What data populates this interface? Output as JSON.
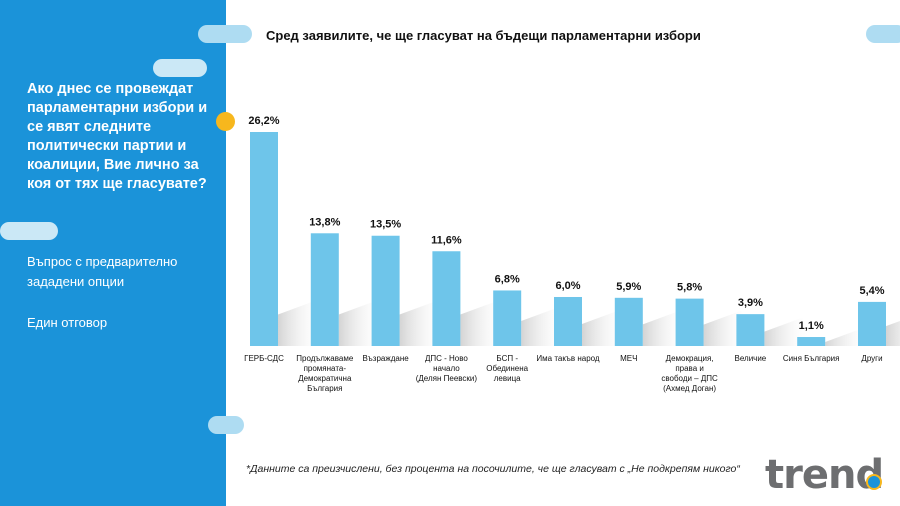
{
  "sidebar": {
    "question": "Ако днес се провеждат парламентарни избори и се явят следните политически партии и коалиции, Вие лично за коя от тях ще гласувате?",
    "question_type": "Въпрос с предварително зададени опции",
    "answer_type": "Един отговор"
  },
  "footnote": "*Данните са преизчислени, без процента на посочилите, че ще гласуват с „Не подкрепям никого“",
  "logo": {
    "text": "trend"
  },
  "colors": {
    "panel": "#1b93d9",
    "bar": "#6ec5ea",
    "accent": "#f7b71d"
  },
  "chart_data": {
    "type": "bar",
    "title": "Сред заявилите, че ще гласуват на бъдещи парламентарни избори",
    "categories": [
      "ГЕРБ-СДС",
      "Продължаваме промяната-Демократична България",
      "Възраждане",
      "ДПС - Ново начало (Делян Пеевски)",
      "БСП - Обединена левица",
      "Има такъв народ",
      "МЕЧ",
      "Демокрация, права и свободи – ДПС (Ахмед Доган)",
      "Величие",
      "Синя България",
      "Други"
    ],
    "category_lines": [
      [
        "ГЕРБ-СДС"
      ],
      [
        "Продължаваме",
        "промяната-",
        "Демократична",
        "България"
      ],
      [
        "Възраждане"
      ],
      [
        "ДПС - Ново",
        "начало",
        "(Делян Пеевски)"
      ],
      [
        "БСП -",
        "Обединена",
        "левица"
      ],
      [
        "Има такъв народ"
      ],
      [
        "МЕЧ"
      ],
      [
        "Демокрация,",
        "права и",
        "свободи – ДПС",
        "(Ахмед Доган)"
      ],
      [
        "Величие"
      ],
      [
        "Синя България"
      ],
      [
        "Други"
      ]
    ],
    "values": [
      26.2,
      13.8,
      13.5,
      11.6,
      6.8,
      6.0,
      5.9,
      5.8,
      3.9,
      1.1,
      5.4
    ],
    "value_labels": [
      "26,2%",
      "13,8%",
      "13,5%",
      "11,6%",
      "6,8%",
      "6,0%",
      "5,9%",
      "5,8%",
      "3,9%",
      "1,1%",
      "5,4%"
    ],
    "ylim": [
      0,
      26.2
    ],
    "grid": false,
    "legend": "none"
  }
}
